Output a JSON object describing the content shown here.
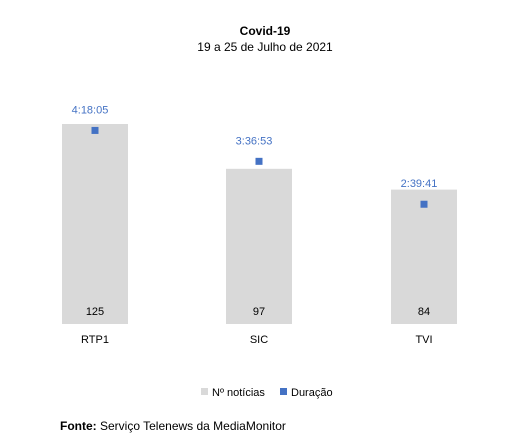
{
  "chart_data": {
    "type": "bar",
    "title": "Covid-19",
    "subtitle": "19 a 25 de Julho de 2021",
    "categories": [
      "RTP1",
      "SIC",
      "TVI"
    ],
    "series": [
      {
        "name": "Nº notícias",
        "values": [
          125,
          97,
          84
        ],
        "labels": [
          "125",
          "97",
          "84"
        ],
        "color": "#d9d9d9",
        "kind": "bar"
      },
      {
        "name": "Duração",
        "values": [
          "4:18:05",
          "3:36:53",
          "2:39:41"
        ],
        "labels": [
          "4:18:05",
          "3:36:53",
          "2:39:41"
        ],
        "color": "#4472c4",
        "kind": "marker"
      }
    ],
    "legend_position": "bottom",
    "grid": false
  },
  "source": {
    "label": "Fonte:",
    "text": "Serviço Telenews da MediaMonitor"
  }
}
